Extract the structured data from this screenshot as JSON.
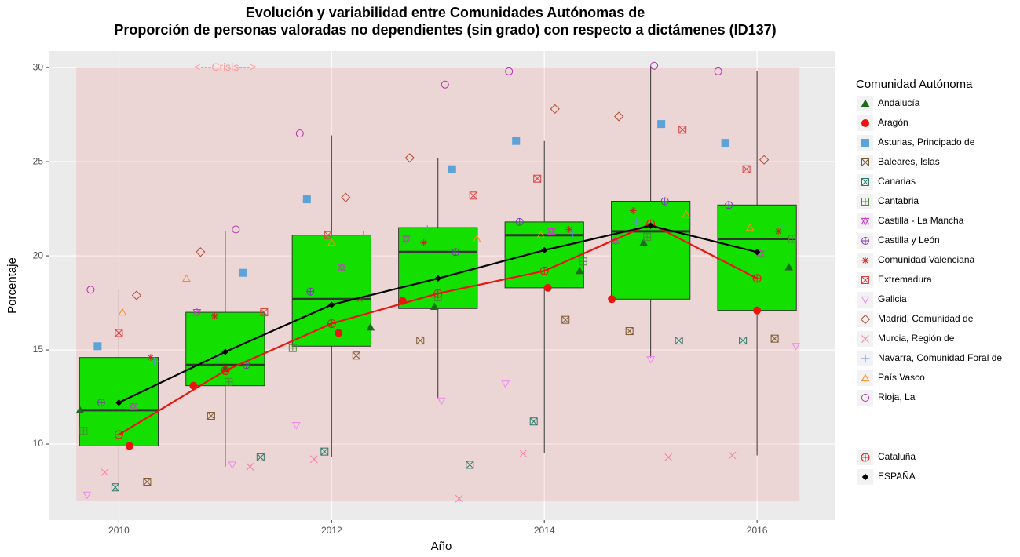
{
  "chart_data": {
    "type": "box",
    "title": [
      "Evolución y variabilidad entre Comunidades Autónomas de",
      "Proporción de personas valoradas no dependientes (sin grado) con respecto a dictámenes (ID137)"
    ],
    "x_label": "Año",
    "y_label": "Porcentaje",
    "legend_title": "Comunidad Autónoma",
    "x": [
      2010,
      2011,
      2012,
      2013,
      2014,
      2015,
      2016
    ],
    "xlim": [
      2009.34,
      2016.73
    ],
    "xticks": [
      2010,
      2012,
      2014,
      2016
    ],
    "ylim": [
      5.96,
      30.88
    ],
    "yticks": [
      10,
      15,
      20,
      25,
      30
    ],
    "grid": true,
    "box_color": "#14e000",
    "annotation": {
      "text": "<---Crisis--->",
      "x": 2011,
      "y": 30,
      "color": "#ff9a9a",
      "region": {
        "x": [
          2009.6,
          2016.4
        ],
        "y": [
          7,
          30
        ],
        "color": "rgba(255,0,0,0.09)"
      }
    },
    "boxes": {
      "whisker_low": [
        7.5,
        8.8,
        9.3,
        12.4,
        9.5,
        14.6,
        9.4
      ],
      "q1": [
        9.9,
        13.1,
        15.2,
        17.2,
        18.3,
        17.7,
        17.1
      ],
      "median": [
        11.8,
        14.2,
        17.7,
        20.2,
        21.1,
        21.3,
        20.9
      ],
      "q3": [
        14.6,
        17.0,
        21.1,
        21.5,
        21.8,
        22.9,
        22.7
      ],
      "whisker_high": [
        18.2,
        21.3,
        26.4,
        25.2,
        26.1,
        30.1,
        29.8
      ]
    },
    "series": [
      {
        "name": "Andalucía",
        "color": "#1a6b1a",
        "shape": "tri",
        "values": [
          11.8,
          14.0,
          16.2,
          17.3,
          19.2,
          20.7,
          19.4
        ]
      },
      {
        "name": "Aragón",
        "color": "#e8150f",
        "shape": "dot",
        "values": [
          9.9,
          13.1,
          15.9,
          17.6,
          18.3,
          17.7,
          17.1
        ]
      },
      {
        "name": "Asturias, Principado de",
        "color": "#5ba3d9",
        "shape": "sq",
        "values": [
          15.2,
          19.1,
          23.0,
          24.6,
          26.1,
          27.0,
          26.0
        ]
      },
      {
        "name": "Baleares, Islas",
        "color": "#7a5a30",
        "shape": "boxx",
        "values": [
          8.0,
          11.5,
          14.7,
          15.5,
          16.6,
          16.0,
          15.6
        ]
      },
      {
        "name": "Canarias",
        "color": "#2e7a6a",
        "shape": "boxx",
        "values": [
          7.7,
          9.3,
          9.6,
          8.9,
          11.2,
          15.5,
          15.5
        ]
      },
      {
        "name": "Cantabria",
        "color": "#4a8a3a",
        "shape": "boxplus",
        "values": [
          10.7,
          13.3,
          15.1,
          17.8,
          19.7,
          21.0,
          20.9
        ]
      },
      {
        "name": "Castilla - La Mancha",
        "color": "#cc33cc",
        "shape": "star",
        "values": [
          12.0,
          17.0,
          19.4,
          20.9,
          21.3,
          20.8,
          20.1
        ]
      },
      {
        "name": "Castilla y León",
        "color": "#7a3ab0",
        "shape": "cplus",
        "values": [
          12.2,
          14.2,
          18.1,
          20.2,
          21.8,
          22.9,
          22.7
        ]
      },
      {
        "name": "Comunidad Valenciana",
        "color": "#cc2222",
        "shape": "ast",
        "values": [
          14.6,
          16.8,
          17.7,
          20.7,
          21.4,
          22.4,
          21.3
        ]
      },
      {
        "name": "Extremadura",
        "color": "#e04040",
        "shape": "boxx",
        "values": [
          15.9,
          17.0,
          21.1,
          23.2,
          24.1,
          26.7,
          24.6
        ]
      },
      {
        "name": "Galicia",
        "color": "#ee88ee",
        "shape": "tridown",
        "values": [
          7.3,
          8.9,
          11.0,
          12.3,
          13.2,
          14.5,
          15.2
        ]
      },
      {
        "name": "Madrid, Comunidad de",
        "color": "#b04a30",
        "shape": "dia",
        "values": [
          17.9,
          20.2,
          23.1,
          25.2,
          27.8,
          27.4,
          25.1
        ]
      },
      {
        "name": "Murcia, Región de",
        "color": "#ff7a9a",
        "shape": "x",
        "values": [
          8.5,
          8.8,
          9.2,
          7.1,
          9.5,
          9.3,
          9.4
        ]
      },
      {
        "name": "Navarra, Comunidad Foral de",
        "color": "#5a8fe0",
        "shape": "plus",
        "values": [
          14.4,
          14.5,
          21.1,
          21.4,
          21.2,
          21.8,
          21.6
        ]
      },
      {
        "name": "País Vasco",
        "color": "#ff8c1a",
        "shape": "triopen",
        "values": [
          17.0,
          18.8,
          20.7,
          20.9,
          21.1,
          22.2,
          21.5
        ]
      },
      {
        "name": "Rioja, La",
        "color": "#b030b0",
        "shape": "circ",
        "values": [
          18.2,
          21.4,
          26.5,
          29.1,
          29.8,
          30.1,
          29.8
        ]
      }
    ],
    "lines": [
      {
        "name": "Cataluña",
        "color": "#e8150f",
        "shape": "cplus",
        "values": [
          10.5,
          13.9,
          16.4,
          18.0,
          19.2,
          21.7,
          18.8
        ]
      },
      {
        "name": "ESPAÑA",
        "color": "#000000",
        "shape": "diafill",
        "values": [
          12.2,
          14.9,
          17.4,
          18.8,
          20.3,
          21.6,
          20.2
        ]
      }
    ]
  }
}
